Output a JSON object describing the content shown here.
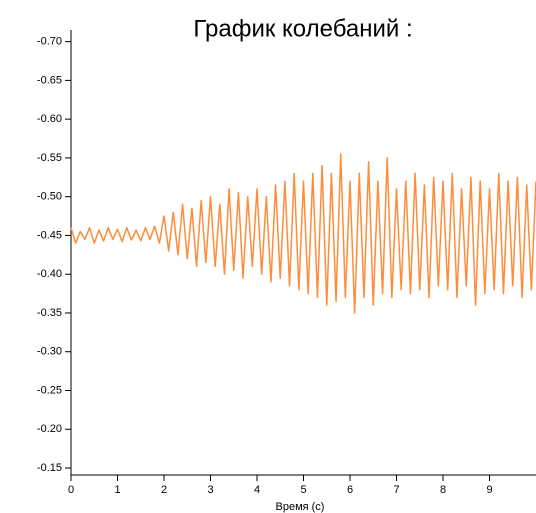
{
  "chart_data": {
    "type": "line",
    "title": "График колебаний :",
    "xlabel": "Время (с)",
    "x": [
      0,
      0.1,
      0.2,
      0.3,
      0.4,
      0.5,
      0.6,
      0.7,
      0.8,
      0.9,
      1,
      1.1,
      1.2,
      1.3,
      1.4,
      1.5,
      1.6,
      1.7,
      1.8,
      1.9,
      2,
      2.1,
      2.2,
      2.3,
      2.4,
      2.5,
      2.6,
      2.7,
      2.8,
      2.9,
      3,
      3.1,
      3.2,
      3.3,
      3.4,
      3.5,
      3.6,
      3.7,
      3.8,
      3.9,
      4,
      4.1,
      4.2,
      4.3,
      4.4,
      4.5,
      4.6,
      4.7,
      4.8,
      4.9,
      5,
      5.1,
      5.2,
      5.3,
      5.4,
      5.5,
      5.6,
      5.7,
      5.8,
      5.9,
      6,
      6.1,
      6.2,
      6.3,
      6.4,
      6.5,
      6.6,
      6.7,
      6.8,
      6.9,
      7,
      7.1,
      7.2,
      7.3,
      7.4,
      7.5,
      7.6,
      7.7,
      7.8,
      7.9,
      8,
      8.1,
      8.2,
      8.3,
      8.4,
      8.5,
      8.6,
      8.7,
      8.8,
      8.9,
      9,
      9.1,
      9.2,
      9.3,
      9.4,
      9.5,
      9.6,
      9.7,
      9.8,
      9.9,
      10
    ],
    "series": [
      {
        "color": "#ff8c3a",
        "values": [
          -0.46,
          -0.44,
          -0.455,
          -0.445,
          -0.46,
          -0.44,
          -0.457,
          -0.443,
          -0.46,
          -0.445,
          -0.458,
          -0.442,
          -0.46,
          -0.444,
          -0.457,
          -0.443,
          -0.46,
          -0.445,
          -0.462,
          -0.44,
          -0.475,
          -0.43,
          -0.48,
          -0.425,
          -0.49,
          -0.42,
          -0.485,
          -0.41,
          -0.495,
          -0.415,
          -0.5,
          -0.41,
          -0.49,
          -0.4,
          -0.51,
          -0.405,
          -0.505,
          -0.395,
          -0.5,
          -0.41,
          -0.51,
          -0.4,
          -0.5,
          -0.39,
          -0.515,
          -0.395,
          -0.52,
          -0.385,
          -0.53,
          -0.38,
          -0.52,
          -0.375,
          -0.53,
          -0.37,
          -0.54,
          -0.36,
          -0.53,
          -0.365,
          -0.555,
          -0.37,
          -0.52,
          -0.35,
          -0.53,
          -0.37,
          -0.545,
          -0.36,
          -0.52,
          -0.375,
          -0.55,
          -0.37,
          -0.51,
          -0.38,
          -0.52,
          -0.375,
          -0.53,
          -0.38,
          -0.515,
          -0.37,
          -0.525,
          -0.385,
          -0.52,
          -0.38,
          -0.53,
          -0.37,
          -0.51,
          -0.385,
          -0.525,
          -0.36,
          -0.52,
          -0.375,
          -0.51,
          -0.38,
          -0.53,
          -0.375,
          -0.52,
          -0.385,
          -0.525,
          -0.37,
          -0.515,
          -0.38,
          -0.52
        ]
      }
    ],
    "xlim": [
      0,
      10
    ],
    "xticks": [
      0,
      1,
      2,
      3,
      4,
      5,
      6,
      7,
      8,
      9
    ],
    "ylim": [
      -0.141,
      -0.715
    ],
    "yticks": [
      {
        "value": -0.7,
        "label": "-0.70"
      },
      {
        "value": -0.65,
        "label": "-0.65"
      },
      {
        "value": -0.6,
        "label": "-0.60"
      },
      {
        "value": -0.55,
        "label": "-0.55"
      },
      {
        "value": -0.5,
        "label": "-0.50"
      },
      {
        "value": -0.45,
        "label": "-0.45"
      },
      {
        "value": -0.4,
        "label": "-0.40"
      },
      {
        "value": -0.35,
        "label": "-0.35"
      },
      {
        "value": -0.3,
        "label": "-0.30"
      },
      {
        "value": -0.25,
        "label": "-0.25"
      },
      {
        "value": -0.2,
        "label": "-0.20"
      },
      {
        "value": -0.15,
        "label": "-0.15"
      }
    ]
  }
}
